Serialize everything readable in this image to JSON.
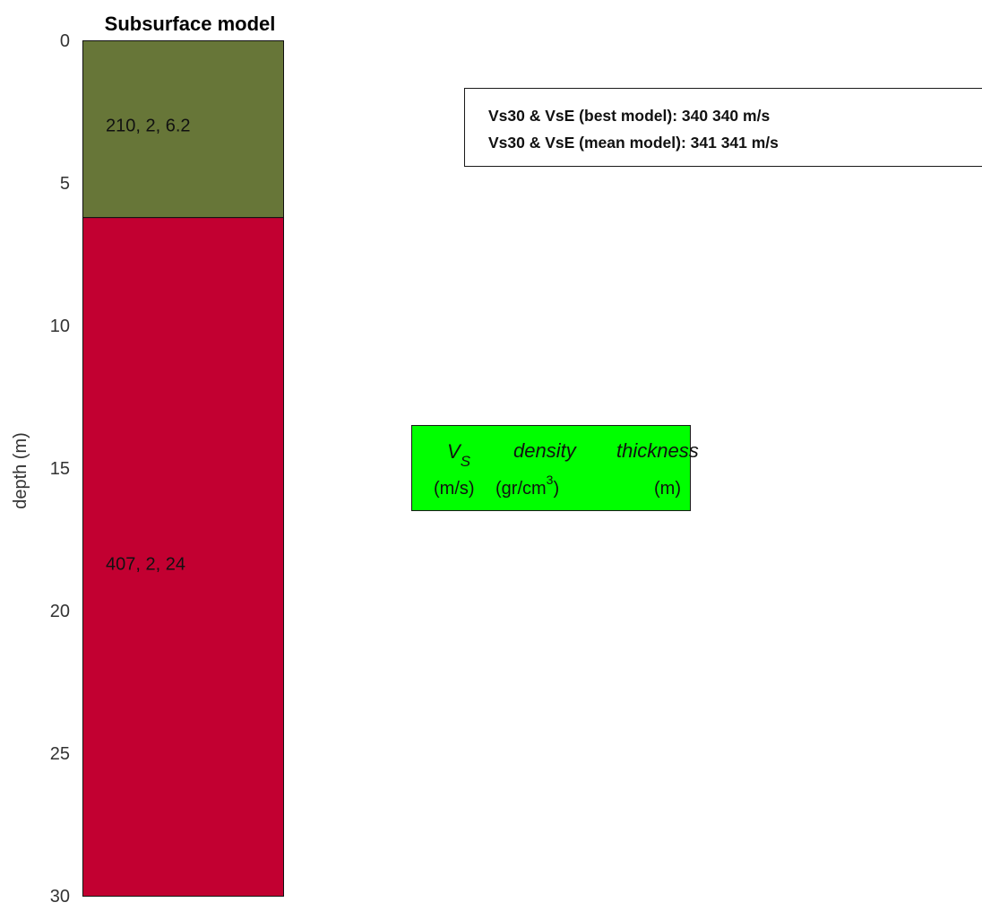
{
  "chart_data": {
    "type": "bar",
    "title": "Subsurface model",
    "xlabel": "",
    "ylabel": "depth (m)",
    "ylim": [
      0,
      30
    ],
    "y_reversed": true,
    "y_ticks": [
      0,
      5,
      10,
      15,
      20,
      25,
      30
    ],
    "y_tick_labels": [
      "0",
      "5",
      "10",
      "15",
      "20",
      "25",
      "30"
    ],
    "grid": false,
    "layers": [
      {
        "top": 0,
        "bottom": 6.2,
        "vs": 210,
        "density": 2,
        "thickness": 6.2,
        "label": "210, 2, 6.2",
        "color": "#677638"
      },
      {
        "top": 6.2,
        "bottom": 30,
        "vs": 407,
        "density": 2,
        "thickness": 24,
        "label": "407, 2, 24",
        "color": "#c20031"
      }
    ],
    "annotations": {
      "vs30_lines": [
        "Vs30 & VsE (best model): 340  340 m/s",
        "Vs30 & VsE (mean model): 341  341 m/s"
      ],
      "legend": {
        "background": "#00ff00",
        "columns": [
          {
            "name": "V",
            "subscript": "S",
            "unit": "(m/s)"
          },
          {
            "name": "density",
            "unit": "(gr/cm",
            "superscript": "3",
            "unit_close": ")"
          },
          {
            "name": "thickness",
            "unit": "(m)"
          }
        ]
      }
    }
  }
}
